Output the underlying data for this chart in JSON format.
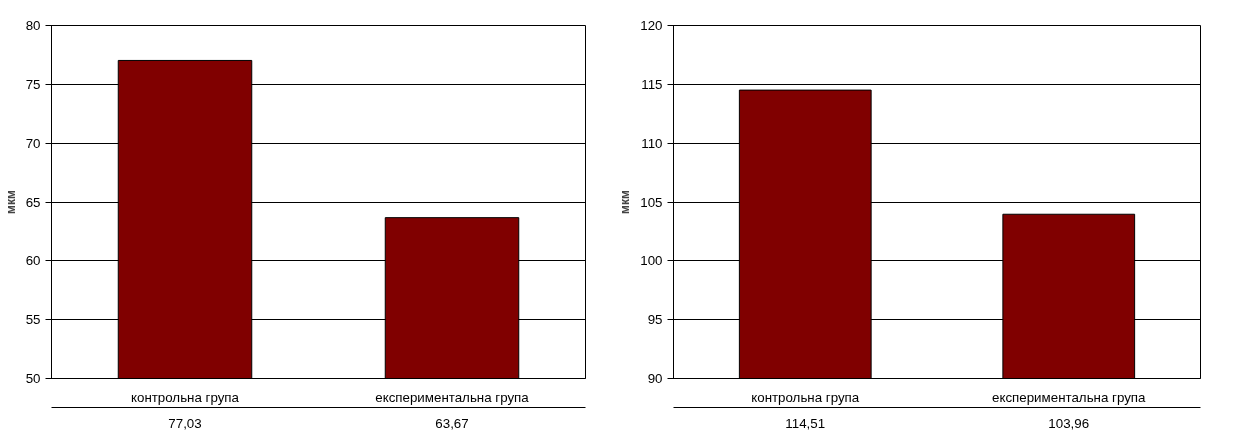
{
  "chart_data": [
    {
      "type": "bar",
      "ylabel": "мкм",
      "categories": [
        "контрольна група",
        "експериментальна група"
      ],
      "values": [
        77.03,
        63.67
      ],
      "value_labels": [
        "77,03",
        "63,67"
      ],
      "color": "#800000",
      "ylim": [
        50,
        80
      ],
      "yticks": [
        50,
        55,
        60,
        65,
        70,
        75,
        80
      ],
      "grid": "y"
    },
    {
      "type": "bar",
      "ylabel": "мкм",
      "categories": [
        "контрольна група",
        "експериментальна група"
      ],
      "values": [
        114.51,
        103.96
      ],
      "value_labels": [
        "114,51",
        "103,96"
      ],
      "color": "#800000",
      "ylim": [
        90,
        120
      ],
      "yticks": [
        90,
        95,
        100,
        105,
        110,
        115,
        120
      ],
      "grid": "y"
    }
  ]
}
